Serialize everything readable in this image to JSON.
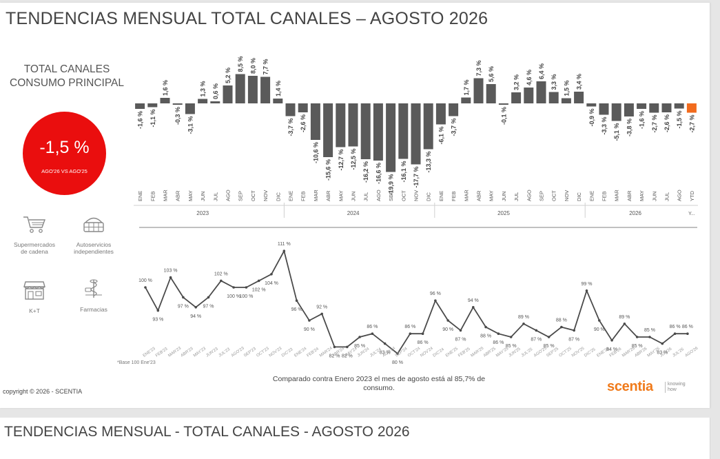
{
  "header": {
    "title": "TENDENCIAS MENSUAL TOTAL CANALES – AGOSTO 2026",
    "subtitle_line1": "TOTAL CANALES",
    "subtitle_line2": "CONSUMO PRINCIPAL"
  },
  "kpi": {
    "value": "-1,5 %",
    "caption": "AGO'26 VS AGO'25",
    "color": "#ea0e0e"
  },
  "channels": [
    {
      "icon": "cart-icon",
      "label_line1": "Supermercados",
      "label_line2": "de cadena"
    },
    {
      "icon": "basket-icon",
      "label_line1": "Autoservicios",
      "label_line2": "independientes"
    },
    {
      "icon": "store-icon",
      "label_line1": "K+T",
      "label_line2": ""
    },
    {
      "icon": "pharmacy-icon",
      "label_line1": "Farmacias",
      "label_line2": ""
    }
  ],
  "footer": {
    "copyright": "copyright © 2026 - SCENTIA",
    "note_line1": "Comparado contra Enero 2023 el mes de agosto está al 85,7% de",
    "note_line2": "consumo.",
    "base_note": "*Base 100 Ene'23",
    "logo_name": "scentia",
    "logo_tag_line1": "knowing",
    "logo_tag_line2": "how"
  },
  "next_slide": {
    "title": "TENDENCIAS MENSUAL - TOTAL CANALES -  AGOSTO 2026"
  },
  "chart_data": [
    {
      "type": "bar",
      "colors": {
        "bar": "#5a5a5a",
        "highlight": "#f26b1d"
      },
      "groups": [
        {
          "label": "2023",
          "start": 0,
          "end": 12
        },
        {
          "label": "2024",
          "start": 12,
          "end": 24
        },
        {
          "label": "2025",
          "start": 24,
          "end": 36
        },
        {
          "label": "2026",
          "start": 36,
          "end": 45
        }
      ],
      "categories": [
        "ENE",
        "FEB",
        "MAR",
        "ABR",
        "MAY",
        "JUN",
        "JUL",
        "AGO",
        "SEP",
        "OCT",
        "NOV",
        "DIC",
        "ENE",
        "FEB",
        "MAR",
        "ABR",
        "MAY",
        "JUN",
        "JUL",
        "AGO",
        "SEP",
        "OCT",
        "NOV",
        "DIC",
        "ENE",
        "FEB",
        "MAR",
        "ABR",
        "MAY",
        "JUN",
        "JUL",
        "AGO",
        "SEP",
        "OCT",
        "NOV",
        "DIC",
        "ENE",
        "FEB",
        "MAR",
        "ABR",
        "MAY",
        "JUN",
        "JUL",
        "AGO",
        "YTD"
      ],
      "values": [
        -1.6,
        -1.1,
        1.6,
        -0.3,
        -3.1,
        1.3,
        0.6,
        5.2,
        8.5,
        8.0,
        7.7,
        1.4,
        -3.7,
        -2.6,
        -10.6,
        -15.6,
        -12.7,
        -12.5,
        -16.2,
        -16.6,
        -19.9,
        -16.1,
        -17.7,
        -13.3,
        -6.1,
        -3.7,
        1.7,
        7.3,
        5.6,
        -0.1,
        3.2,
        4.6,
        6.4,
        3.3,
        1.5,
        3.4,
        -0.9,
        -3.3,
        -5.1,
        -3.8,
        -1.6,
        -2.7,
        -2.6,
        -1.5,
        -2.7
      ],
      "value_labels": [
        "-1,6 %",
        "-1,1 %",
        "1,6 %",
        "-0,3 %",
        "-3,1 %",
        "1,3 %",
        "0,6 %",
        "5,2 %",
        "8,5 %",
        "8,0 %",
        "7,7 %",
        "1,4 %",
        "-3,7 %",
        "-2,6 %",
        "-10,6 %",
        "-15,6 %",
        "-12,7 %",
        "-12,5 %",
        "-16,2 %",
        "-16,6 %",
        "-19,9 %",
        "-16,1 %",
        "-17,7 %",
        "-13,3 %",
        "-6,1 %",
        "-3,7 %",
        "1,7 %",
        "7,3 %",
        "5,6 %",
        "-0,1 %",
        "3,2 %",
        "4,6 %",
        "6,4 %",
        "3,3 %",
        "1,5 %",
        "3,4 %",
        "-0,9 %",
        "-3,3 %",
        "-5,1 %",
        "-3,8 %",
        "-1,6 %",
        "-2,7 %",
        "-2,6 %",
        "-1,5 %",
        "-2,7 %"
      ],
      "highlight_index": 44,
      "last_group_tick_label": "Y..."
    },
    {
      "type": "line",
      "color": "#4a4a4a",
      "categories": [
        "ENE'23",
        "FEB'23",
        "MAR'23",
        "ABR'23",
        "MAY'23",
        "JUN'23",
        "JUL'23",
        "AGO'23",
        "SEP'23",
        "OCT'23",
        "NOV'23",
        "DIC'23",
        "ENE'24",
        "FEB'24",
        "MAR'24",
        "ABR'24",
        "MAY'24",
        "JUN'24",
        "JUL'24",
        "AGO'24",
        "SEP'24",
        "OCT'24",
        "NOV'24",
        "DIC'24",
        "ENE'25",
        "FEB'25",
        "MAR'25",
        "ABR'25",
        "MAY'25",
        "JUN'25",
        "JUL'25",
        "AGO'25",
        "SEP'25",
        "OCT'25",
        "NOV'25",
        "DIC'25",
        "ENE'26",
        "FEB'26",
        "MAR'26",
        "ABR'26",
        "MAY'26",
        "JUN'26",
        "JUL'26",
        "AGO'26"
      ],
      "values": [
        100,
        93,
        103,
        97,
        94,
        97,
        102,
        100,
        100,
        102,
        104,
        111,
        96,
        90,
        92,
        82,
        82,
        85,
        86,
        83,
        80,
        86,
        86,
        96,
        90,
        87,
        94,
        88,
        86,
        85,
        89,
        87,
        85,
        88,
        87,
        99,
        90,
        84,
        89,
        85,
        85,
        83,
        86,
        86
      ],
      "value_labels": [
        "100 %",
        "93 %",
        "103 %",
        "97 %",
        "94 %",
        "97 %",
        "102 %",
        "100 %",
        "100 %",
        "102 %",
        "104 %",
        "111 %",
        "96 %",
        "90 %",
        "92 %",
        "82 %",
        "82 %",
        "85 %",
        "86 %",
        "83 %",
        "80 %",
        "86 %",
        "86 %",
        "96 %",
        "90 %",
        "87 %",
        "94 %",
        "88 %",
        "86 %",
        "85 %",
        "89 %",
        "87 %",
        "85 %",
        "88 %",
        "87 %",
        "99 %",
        "90 %",
        "84 %",
        "89 %",
        "85 %",
        "85 %",
        "83 %",
        "86 %",
        "86 %"
      ]
    }
  ]
}
